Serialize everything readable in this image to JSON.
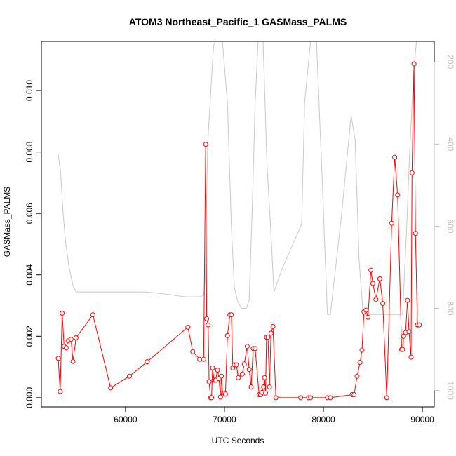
{
  "chart_data": {
    "type": "line",
    "title": "ATOM3 Northeast_Pacific_1 GASMass_PALMS",
    "xlabel": "UTC Seconds",
    "ylabel": "GASMass_PALMS",
    "xlim": [
      51500,
      91200
    ],
    "ylim": [
      -0.0003,
      0.0116
    ],
    "x_ticks": [
      60000,
      70000,
      80000,
      90000
    ],
    "x_tick_labels": [
      "60000",
      "70000",
      "80000",
      "90000"
    ],
    "y_ticks": [
      0.0,
      0.002,
      0.004,
      0.006,
      0.008,
      0.01
    ],
    "y_tick_labels": [
      "0.000",
      "0.002",
      "0.004",
      "0.006",
      "0.008",
      "0.010"
    ],
    "y2_lim": [
      1040,
      150
    ],
    "y2_ticks": [
      200,
      400,
      600,
      800,
      1000
    ],
    "y2_tick_labels": [
      "200",
      "400",
      "600",
      "800",
      "1000"
    ],
    "grid": false,
    "colors": {
      "series": "#ff0000",
      "secondary": "#c8c8c8",
      "axis": "#000000",
      "secondary_axis": "#bebebe"
    },
    "series": [
      {
        "color": "#ff0000",
        "marker": "open-circle",
        "points": [
          [
            53200,
            0.00128
          ],
          [
            53400,
            0.0002
          ],
          [
            53600,
            0.00275
          ],
          [
            53800,
            0.00167
          ],
          [
            54000,
            0.00162
          ],
          [
            54200,
            0.00185
          ],
          [
            54500,
            0.0019
          ],
          [
            54700,
            0.00118
          ],
          [
            55000,
            0.00195
          ],
          [
            56700,
            0.0027
          ],
          [
            58500,
            0.00032
          ],
          [
            60400,
            0.0007
          ],
          [
            62200,
            0.00117
          ],
          [
            66300,
            0.0023
          ],
          [
            66800,
            0.0015
          ],
          [
            67500,
            0.00125
          ],
          [
            67900,
            0.00125
          ],
          [
            68100,
            0.00825
          ],
          [
            68200,
            0.00257
          ],
          [
            68350,
            0.00237
          ],
          [
            68450,
            0.00052
          ],
          [
            68600,
            0.0
          ],
          [
            68700,
            0.0
          ],
          [
            68800,
            0.00097
          ],
          [
            68950,
            0.00057
          ],
          [
            69100,
            0.00057
          ],
          [
            69300,
            0.0009
          ],
          [
            69450,
            0.00062
          ],
          [
            69600,
            2e-05
          ],
          [
            69700,
            0.0007
          ],
          [
            69800,
            0.00015
          ],
          [
            69900,
            0.00013
          ],
          [
            70000,
            0.00015
          ],
          [
            70100,
            0.00012
          ],
          [
            70300,
            0.00202
          ],
          [
            70550,
            0.0027
          ],
          [
            70700,
            0.0027
          ],
          [
            70850,
            0.00097
          ],
          [
            71000,
            0.00107
          ],
          [
            71200,
            0.00107
          ],
          [
            71400,
            0.00065
          ],
          [
            71800,
            0.00077
          ],
          [
            72000,
            0.0011
          ],
          [
            72300,
            0.00167
          ],
          [
            72500,
            0.00092
          ],
          [
            72700,
            0.00035
          ],
          [
            72900,
            0.0016
          ],
          [
            73100,
            0.0016
          ],
          [
            73500,
            0.0001
          ],
          [
            73650,
            0.0001
          ],
          [
            73800,
            0.00017
          ],
          [
            73950,
            0.00035
          ],
          [
            74050,
            0.00065
          ],
          [
            74150,
            0.00015
          ],
          [
            74250,
            0.00197
          ],
          [
            74400,
            0.00197
          ],
          [
            74550,
            0.00035
          ],
          [
            74700,
            0.0021
          ],
          [
            74900,
            0.00232
          ],
          [
            75200,
            0.0
          ],
          [
            77700,
            0.0
          ],
          [
            78500,
            0.0
          ],
          [
            78700,
            0.0
          ],
          [
            80400,
            0.0
          ],
          [
            80700,
            0.0
          ],
          [
            82900,
            0.0001
          ],
          [
            83100,
            0.0001
          ],
          [
            83400,
            0.0007
          ],
          [
            83700,
            0.00115
          ],
          [
            83900,
            0.00155
          ],
          [
            84100,
            0.0028
          ],
          [
            84300,
            0.00285
          ],
          [
            84500,
            0.00262
          ],
          [
            84800,
            0.00415
          ],
          [
            85000,
            0.00372
          ],
          [
            85300,
            0.0032
          ],
          [
            85700,
            0.00387
          ],
          [
            86000,
            0.00307
          ],
          [
            86400,
            0.0
          ],
          [
            86900,
            0.00568
          ],
          [
            87200,
            0.00783
          ],
          [
            87500,
            0.0066
          ],
          [
            87900,
            0.00157
          ],
          [
            88000,
            0.00157
          ],
          [
            88100,
            0.002
          ],
          [
            88300,
            0.00212
          ],
          [
            88500,
            0.00317
          ],
          [
            88650,
            0.00215
          ],
          [
            88850,
            0.00132
          ],
          [
            88950,
            0.00732
          ],
          [
            89150,
            0.01087
          ],
          [
            89300,
            0.00535
          ],
          [
            89500,
            0.00237
          ],
          [
            89700,
            0.00237
          ]
        ]
      },
      {
        "color": "#c8c8c8",
        "axis": "secondary",
        "points": [
          [
            53200,
            425
          ],
          [
            53450,
            470
          ],
          [
            53700,
            570
          ],
          [
            53950,
            640
          ],
          [
            54300,
            700
          ],
          [
            54700,
            745
          ],
          [
            55000,
            760
          ],
          [
            56000,
            760
          ],
          [
            58000,
            760
          ],
          [
            62000,
            760
          ],
          [
            64000,
            765
          ],
          [
            66000,
            772
          ],
          [
            67500,
            772
          ],
          [
            67900,
            768
          ],
          [
            68050,
            730
          ],
          [
            68300,
            400
          ],
          [
            68600,
            280
          ],
          [
            68900,
            160
          ],
          [
            69100,
            130
          ],
          [
            69800,
            130
          ],
          [
            70300,
            300
          ],
          [
            70700,
            600
          ],
          [
            71000,
            750
          ],
          [
            71300,
            780
          ],
          [
            71700,
            800
          ],
          [
            72200,
            800
          ],
          [
            72500,
            780
          ],
          [
            72800,
            560
          ],
          [
            73100,
            300
          ],
          [
            73400,
            130
          ],
          [
            73900,
            130
          ],
          [
            74300,
            450
          ],
          [
            74700,
            620
          ],
          [
            75000,
            760
          ],
          [
            75800,
            705
          ],
          [
            76800,
            650
          ],
          [
            77800,
            595
          ],
          [
            78100,
            300
          ],
          [
            78700,
            130
          ],
          [
            79300,
            130
          ],
          [
            79900,
            500
          ],
          [
            80400,
            815
          ],
          [
            80700,
            815
          ],
          [
            81800,
            580
          ],
          [
            82800,
            330
          ],
          [
            83200,
            390
          ],
          [
            83600,
            680
          ],
          [
            84000,
            810
          ],
          [
            84200,
            815
          ],
          [
            85000,
            815
          ],
          [
            86500,
            815
          ],
          [
            87500,
            815
          ],
          [
            88000,
            815
          ],
          [
            88400,
            610
          ],
          [
            88700,
            430
          ],
          [
            89100,
            230
          ],
          [
            89400,
            150
          ],
          [
            89700,
            100
          ]
        ]
      }
    ]
  }
}
